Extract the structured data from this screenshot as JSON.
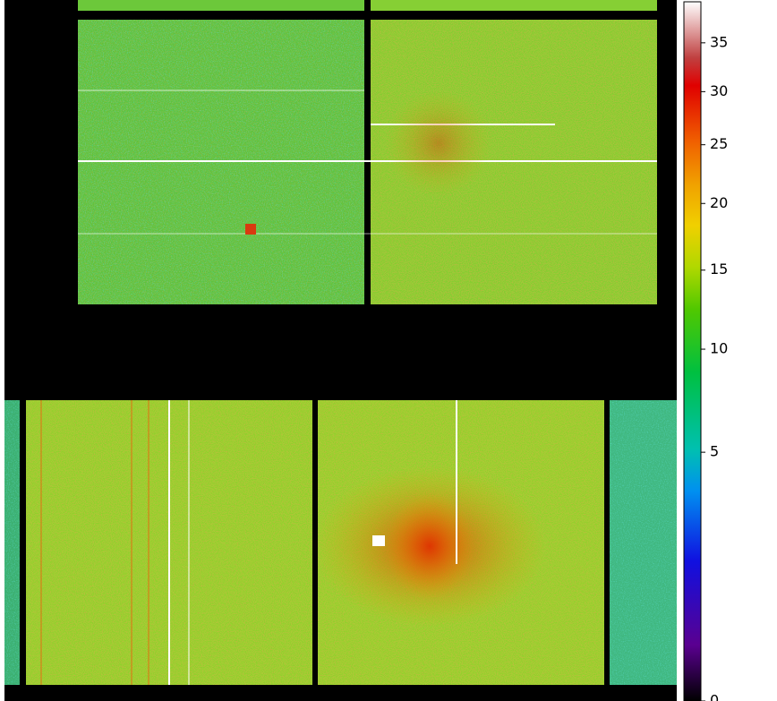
{
  "chart_data": {
    "type": "heatmap",
    "colorbar": {
      "lim": [
        0,
        39.5
      ],
      "scale": "sqrt",
      "ticks": [
        0,
        5,
        10,
        15,
        20,
        25,
        30,
        35
      ]
    }
  }
}
